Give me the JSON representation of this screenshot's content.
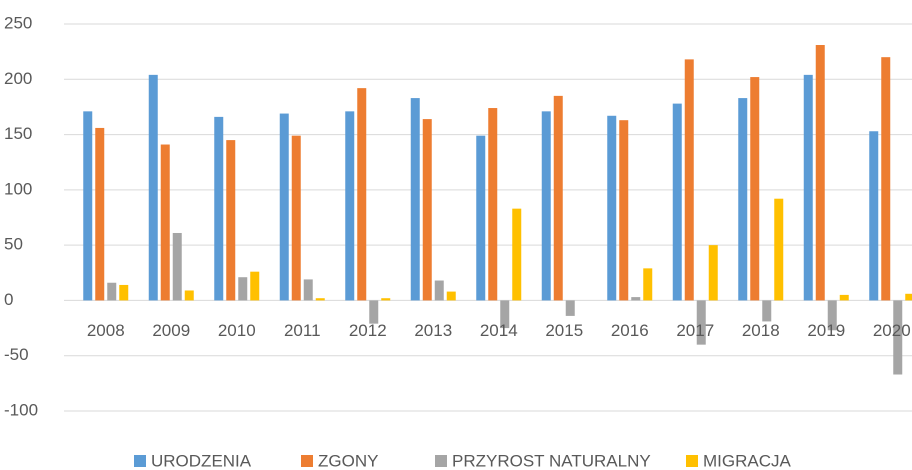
{
  "chart_data": {
    "type": "bar",
    "categories": [
      "2008",
      "2009",
      "2010",
      "2011",
      "2012",
      "2013",
      "2014",
      "2015",
      "2016",
      "2017",
      "2018",
      "2019",
      "2020"
    ],
    "series": [
      {
        "name": "URODZENIA",
        "color": "#5b9bd5",
        "values": [
          171,
          204,
          166,
          169,
          171,
          183,
          149,
          171,
          167,
          178,
          183,
          204,
          153
        ]
      },
      {
        "name": "ZGONY",
        "color": "#ed7d31",
        "values": [
          156,
          141,
          145,
          149,
          192,
          164,
          174,
          185,
          163,
          218,
          202,
          231,
          220
        ]
      },
      {
        "name": "PRZYROST NATURALNY",
        "color": "#a5a5a5",
        "values": [
          16,
          61,
          21,
          19,
          -21,
          18,
          -25,
          -14,
          3,
          -40,
          -19,
          -27,
          -67
        ]
      },
      {
        "name": "MIGRACJA",
        "color": "#ffc000",
        "values": [
          14,
          9,
          26,
          2,
          2,
          8,
          83,
          0,
          29,
          50,
          92,
          5,
          6
        ]
      }
    ],
    "ylim": [
      -100,
      250
    ],
    "yticks": [
      -100,
      -50,
      0,
      50,
      100,
      150,
      200,
      250
    ],
    "grid": true,
    "legend": "bottom"
  }
}
